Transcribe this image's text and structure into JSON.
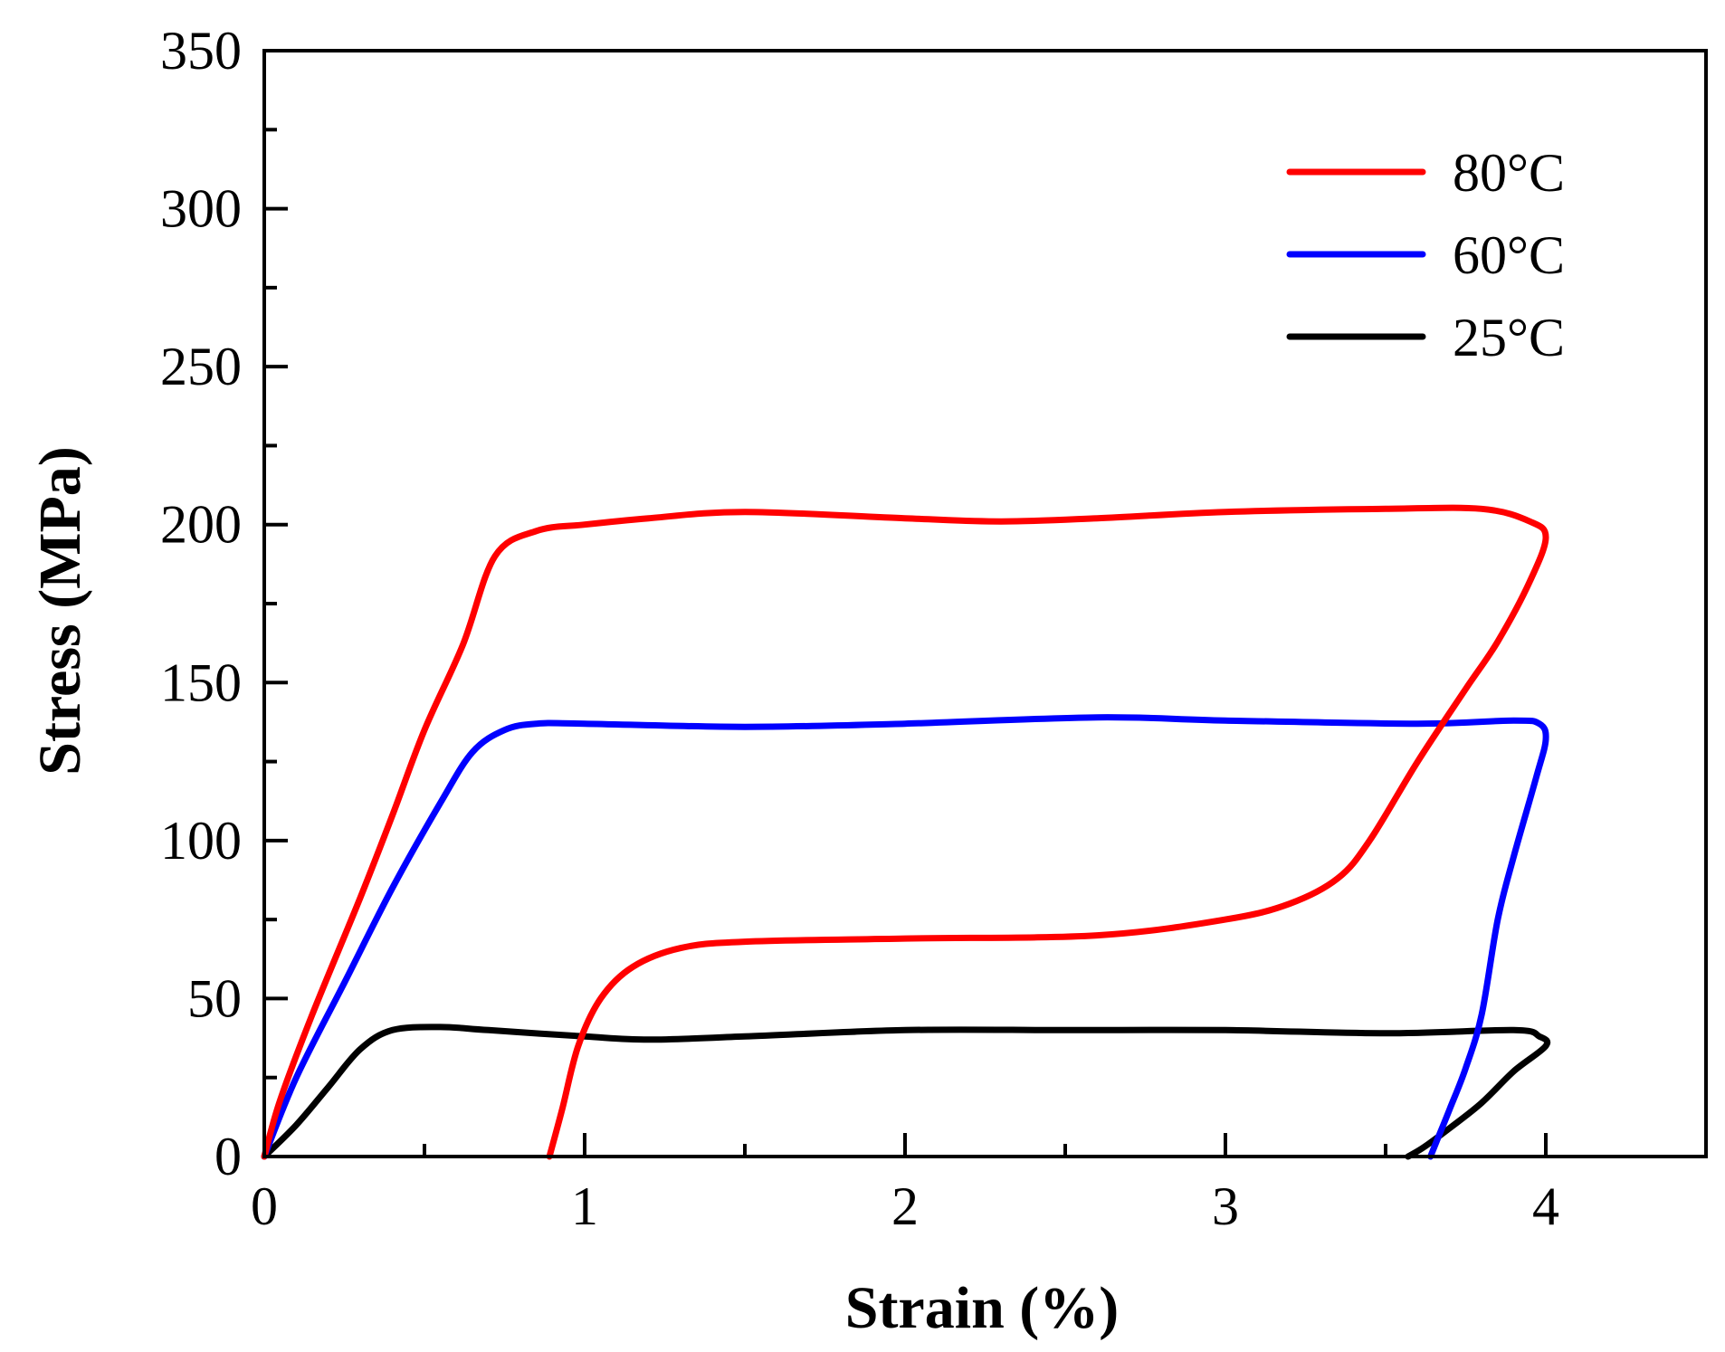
{
  "chart_data": {
    "type": "line",
    "title": "",
    "xlabel": "Strain (%)",
    "ylabel": "Stress (MPa)",
    "xlim": [
      0,
      4.5
    ],
    "ylim": [
      0,
      350
    ],
    "xticks": [
      0,
      1,
      2,
      3,
      4
    ],
    "yticks": [
      0,
      50,
      100,
      150,
      200,
      250,
      300,
      350
    ],
    "xtick_labels": [
      "0",
      "1",
      "2",
      "3",
      "4"
    ],
    "ytick_labels": [
      "0",
      "50",
      "100",
      "150",
      "200",
      "250",
      "300",
      "350"
    ],
    "grid": false,
    "legend_position": "top-right",
    "series": [
      {
        "name": "80°C",
        "color": "#ff0000",
        "points": [
          [
            0,
            0
          ],
          [
            0.05,
            18
          ],
          [
            0.15,
            45
          ],
          [
            0.3,
            82
          ],
          [
            0.4,
            108
          ],
          [
            0.5,
            135
          ],
          [
            0.62,
            162
          ],
          [
            0.72,
            190
          ],
          [
            0.85,
            198
          ],
          [
            1.0,
            200
          ],
          [
            1.2,
            202
          ],
          [
            1.5,
            204
          ],
          [
            2.0,
            202
          ],
          [
            2.3,
            201
          ],
          [
            2.6,
            202
          ],
          [
            3.0,
            204
          ],
          [
            3.5,
            205
          ],
          [
            3.8,
            205
          ],
          [
            3.95,
            201
          ],
          [
            4.0,
            196
          ],
          [
            3.95,
            182
          ],
          [
            3.85,
            163
          ],
          [
            3.75,
            148
          ],
          [
            3.6,
            125
          ],
          [
            3.45,
            100
          ],
          [
            3.35,
            88
          ],
          [
            3.2,
            80
          ],
          [
            3.0,
            75
          ],
          [
            2.6,
            70
          ],
          [
            2.0,
            69
          ],
          [
            1.5,
            68
          ],
          [
            1.3,
            66
          ],
          [
            1.15,
            60
          ],
          [
            1.05,
            50
          ],
          [
            0.98,
            35
          ],
          [
            0.93,
            15
          ],
          [
            0.89,
            0
          ]
        ]
      },
      {
        "name": "60°C",
        "color": "#0000ff",
        "points": [
          [
            0,
            0
          ],
          [
            0.1,
            25
          ],
          [
            0.25,
            55
          ],
          [
            0.4,
            85
          ],
          [
            0.55,
            112
          ],
          [
            0.65,
            128
          ],
          [
            0.75,
            135
          ],
          [
            0.85,
            137
          ],
          [
            1.0,
            137
          ],
          [
            1.5,
            136
          ],
          [
            2.0,
            137
          ],
          [
            2.6,
            139
          ],
          [
            3.0,
            138
          ],
          [
            3.6,
            137
          ],
          [
            3.9,
            138
          ],
          [
            3.98,
            137
          ],
          [
            4.0,
            132
          ],
          [
            3.97,
            120
          ],
          [
            3.9,
            95
          ],
          [
            3.85,
            75
          ],
          [
            3.8,
            45
          ],
          [
            3.75,
            28
          ],
          [
            3.7,
            15
          ],
          [
            3.66,
            5
          ],
          [
            3.64,
            0
          ]
        ]
      },
      {
        "name": "25°C",
        "color": "#000000",
        "points": [
          [
            0,
            0
          ],
          [
            0.1,
            10
          ],
          [
            0.2,
            22
          ],
          [
            0.3,
            34
          ],
          [
            0.4,
            40
          ],
          [
            0.55,
            41
          ],
          [
            0.7,
            40
          ],
          [
            1.0,
            38
          ],
          [
            1.2,
            37
          ],
          [
            1.5,
            38
          ],
          [
            2.0,
            40
          ],
          [
            2.5,
            40
          ],
          [
            3.0,
            40
          ],
          [
            3.5,
            39
          ],
          [
            3.9,
            40
          ],
          [
            3.98,
            38
          ],
          [
            4.0,
            35
          ],
          [
            3.9,
            27
          ],
          [
            3.8,
            17
          ],
          [
            3.7,
            9
          ],
          [
            3.62,
            3
          ],
          [
            3.57,
            0
          ]
        ]
      }
    ]
  }
}
